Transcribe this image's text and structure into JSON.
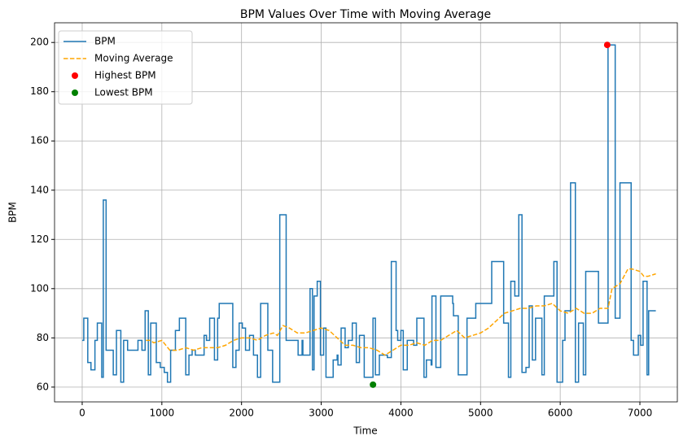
{
  "chart_data": {
    "type": "line",
    "title": "BPM Values Over Time with Moving Average",
    "x_label": "Time",
    "y_label": "BPM",
    "xlim": [
      -347,
      7470
    ],
    "ylim": [
      54,
      208
    ],
    "xticks": [
      0,
      1000,
      2000,
      3000,
      4000,
      5000,
      6000,
      7000
    ],
    "yticks": [
      60,
      80,
      100,
      120,
      140,
      160,
      180,
      200
    ],
    "grid": true,
    "legend": "upper left",
    "series": [
      {
        "name": "BPM",
        "color": "#1f77b4",
        "style": "steps-post",
        "x": [
          0,
          20,
          70,
          110,
          160,
          190,
          245,
          265,
          300,
          390,
          430,
          485,
          520,
          570,
          700,
          750,
          790,
          830,
          860,
          930,
          980,
          1030,
          1070,
          1110,
          1170,
          1220,
          1300,
          1340,
          1380,
          1420,
          1530,
          1560,
          1600,
          1660,
          1700,
          1720,
          1890,
          1930,
          1970,
          2010,
          2050,
          2100,
          2150,
          2200,
          2240,
          2330,
          2390,
          2480,
          2560,
          2710,
          2760,
          2770,
          2860,
          2890,
          2910,
          2950,
          2990,
          3030,
          3060,
          3150,
          3200,
          3210,
          3250,
          3300,
          3340,
          3390,
          3440,
          3480,
          3540,
          3650,
          3680,
          3730,
          3830,
          3880,
          3940,
          3960,
          4000,
          4030,
          4080,
          4160,
          4200,
          4290,
          4320,
          4380,
          4390,
          4440,
          4500,
          4650,
          4660,
          4720,
          4830,
          4940,
          5140,
          5290,
          5350,
          5380,
          5430,
          5480,
          5520,
          5570,
          5610,
          5650,
          5690,
          5770,
          5800,
          5920,
          5960,
          6030,
          6060,
          6130,
          6190,
          6230,
          6290,
          6320,
          6480,
          6600,
          6690,
          6750,
          6890,
          6920,
          6980,
          7010,
          7040,
          7090,
          7110,
          7200
        ],
        "values": [
          79,
          88,
          70,
          67,
          79,
          86,
          64,
          136,
          75,
          65,
          83,
          62,
          79,
          75,
          79,
          75,
          91,
          65,
          86,
          70,
          68,
          66,
          62,
          75,
          83,
          88,
          65,
          73,
          75,
          73,
          81,
          79,
          88,
          71,
          88,
          94,
          68,
          75,
          86,
          84,
          75,
          81,
          73,
          64,
          94,
          75,
          62,
          130,
          79,
          73,
          79,
          73,
          100,
          67,
          97,
          103,
          73,
          84,
          64,
          71,
          73,
          69,
          84,
          76,
          79,
          86,
          70,
          81,
          64,
          88,
          65,
          73,
          72,
          111,
          83,
          79,
          83,
          67,
          79,
          77,
          88,
          64,
          71,
          69,
          97,
          68,
          97,
          94,
          89,
          65,
          88,
          94,
          111,
          86,
          64,
          103,
          97,
          130,
          66,
          68,
          93,
          71,
          88,
          65,
          97,
          111,
          62,
          79,
          91,
          143,
          62,
          86,
          65,
          107,
          86,
          199,
          88,
          143,
          79,
          73,
          81,
          77,
          103,
          65,
          91,
          91
        ]
      },
      {
        "name": "Moving Average",
        "color": "#ffa500",
        "style": "dashed",
        "x": [
          800,
          850,
          900,
          1000,
          1100,
          1200,
          1300,
          1400,
          1500,
          1600,
          1700,
          1800,
          1900,
          2000,
          2100,
          2200,
          2300,
          2400,
          2450,
          2520,
          2600,
          2700,
          2800,
          2900,
          3000,
          3100,
          3200,
          3300,
          3400,
          3500,
          3600,
          3700,
          3800,
          3900,
          4000,
          4100,
          4200,
          4300,
          4400,
          4500,
          4600,
          4700,
          4800,
          4900,
          5000,
          5100,
          5200,
          5300,
          5400,
          5500,
          5600,
          5700,
          5800,
          5900,
          6000,
          6100,
          6200,
          6300,
          6400,
          6500,
          6600,
          6650,
          6750,
          6850,
          6900,
          7000,
          7050,
          7100,
          7200
        ],
        "values": [
          79,
          79,
          78,
          79,
          75,
          75,
          76,
          75,
          76,
          76,
          76,
          77,
          79,
          80,
          80,
          79,
          81,
          82,
          81,
          85,
          84,
          82,
          82,
          83,
          84,
          83,
          80,
          77,
          77,
          76,
          76,
          75,
          73,
          75,
          77,
          77,
          78,
          77,
          79,
          79,
          81,
          83,
          80,
          81,
          82,
          84,
          87,
          90,
          91,
          92,
          92,
          93,
          93,
          94,
          91,
          90,
          92,
          90,
          90,
          92,
          92,
          100,
          102,
          108,
          108,
          107,
          105,
          105,
          106
        ]
      },
      {
        "name": "Highest BPM",
        "color": "#ff0000",
        "style": "marker",
        "x": [
          6590
        ],
        "values": [
          199
        ]
      },
      {
        "name": "Lowest BPM",
        "color": "#008000",
        "style": "marker",
        "x": [
          3650
        ],
        "values": [
          61
        ]
      }
    ]
  }
}
